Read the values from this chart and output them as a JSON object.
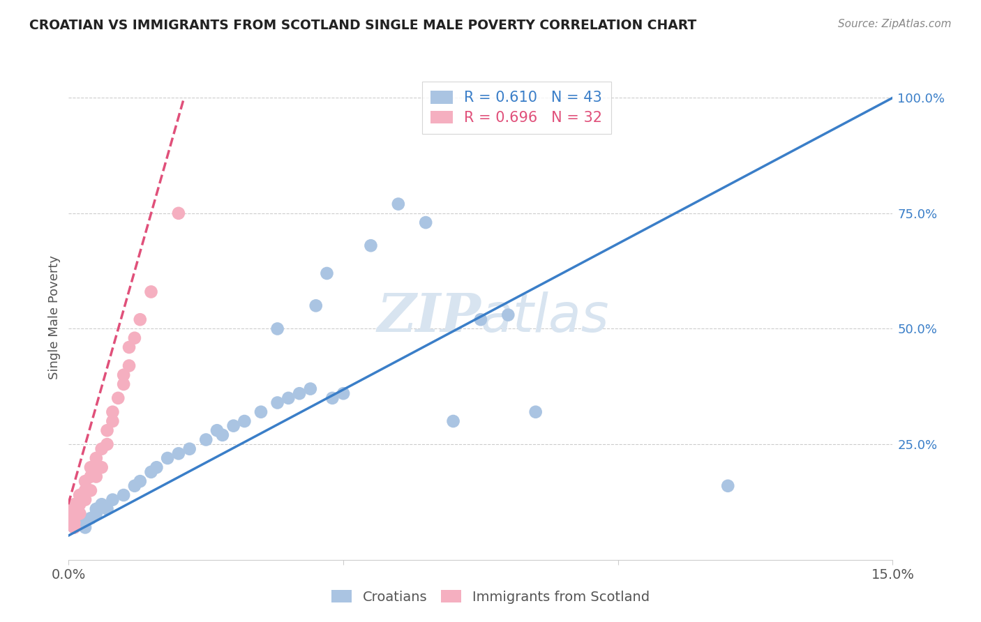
{
  "title": "CROATIAN VS IMMIGRANTS FROM SCOTLAND SINGLE MALE POVERTY CORRELATION CHART",
  "source": "Source: ZipAtlas.com",
  "ylabel": "Single Male Poverty",
  "legend_blue_r": "R = 0.610",
  "legend_blue_n": "N = 43",
  "legend_pink_r": "R = 0.696",
  "legend_pink_n": "N = 32",
  "blue_scatter": [
    [
      0.001,
      0.07
    ],
    [
      0.001,
      0.08
    ],
    [
      0.002,
      0.09
    ],
    [
      0.002,
      0.1
    ],
    [
      0.003,
      0.08
    ],
    [
      0.003,
      0.07
    ],
    [
      0.004,
      0.09
    ],
    [
      0.005,
      0.1
    ],
    [
      0.005,
      0.11
    ],
    [
      0.006,
      0.12
    ],
    [
      0.007,
      0.11
    ],
    [
      0.008,
      0.13
    ],
    [
      0.01,
      0.14
    ],
    [
      0.012,
      0.16
    ],
    [
      0.013,
      0.17
    ],
    [
      0.015,
      0.19
    ],
    [
      0.016,
      0.2
    ],
    [
      0.018,
      0.22
    ],
    [
      0.02,
      0.23
    ],
    [
      0.022,
      0.24
    ],
    [
      0.025,
      0.26
    ],
    [
      0.027,
      0.28
    ],
    [
      0.028,
      0.27
    ],
    [
      0.03,
      0.29
    ],
    [
      0.032,
      0.3
    ],
    [
      0.035,
      0.32
    ],
    [
      0.038,
      0.34
    ],
    [
      0.04,
      0.35
    ],
    [
      0.042,
      0.36
    ],
    [
      0.044,
      0.37
    ],
    [
      0.048,
      0.35
    ],
    [
      0.05,
      0.36
    ],
    [
      0.038,
      0.5
    ],
    [
      0.045,
      0.55
    ],
    [
      0.047,
      0.62
    ],
    [
      0.055,
      0.68
    ],
    [
      0.06,
      0.77
    ],
    [
      0.065,
      0.73
    ],
    [
      0.075,
      0.52
    ],
    [
      0.08,
      0.53
    ],
    [
      0.07,
      0.3
    ],
    [
      0.085,
      0.32
    ],
    [
      0.12,
      0.16
    ]
  ],
  "pink_scatter": [
    [
      0.001,
      0.07
    ],
    [
      0.001,
      0.08
    ],
    [
      0.001,
      0.09
    ],
    [
      0.001,
      0.1
    ],
    [
      0.001,
      0.11
    ],
    [
      0.001,
      0.12
    ],
    [
      0.002,
      0.1
    ],
    [
      0.002,
      0.12
    ],
    [
      0.002,
      0.14
    ],
    [
      0.003,
      0.13
    ],
    [
      0.003,
      0.15
    ],
    [
      0.003,
      0.17
    ],
    [
      0.004,
      0.15
    ],
    [
      0.004,
      0.18
    ],
    [
      0.004,
      0.2
    ],
    [
      0.005,
      0.18
    ],
    [
      0.005,
      0.22
    ],
    [
      0.006,
      0.2
    ],
    [
      0.006,
      0.24
    ],
    [
      0.007,
      0.25
    ],
    [
      0.007,
      0.28
    ],
    [
      0.008,
      0.3
    ],
    [
      0.008,
      0.32
    ],
    [
      0.009,
      0.35
    ],
    [
      0.01,
      0.38
    ],
    [
      0.01,
      0.4
    ],
    [
      0.011,
      0.42
    ],
    [
      0.011,
      0.46
    ],
    [
      0.012,
      0.48
    ],
    [
      0.013,
      0.52
    ],
    [
      0.015,
      0.58
    ],
    [
      0.02,
      0.75
    ]
  ],
  "blue_line_x": [
    -0.002,
    0.15
  ],
  "blue_line_y": [
    0.04,
    1.0
  ],
  "pink_line_x": [
    -0.002,
    0.021
  ],
  "pink_line_y": [
    0.04,
    1.0
  ],
  "blue_color": "#aac4e2",
  "blue_line_color": "#3a7ec8",
  "pink_color": "#f5afc0",
  "pink_line_color": "#e0507a",
  "watermark_zip": "ZIP",
  "watermark_atlas": "atlas",
  "watermark_color": "#d8e4f0",
  "background_color": "#ffffff",
  "xlim": [
    -0.003,
    0.153
  ],
  "ylim": [
    -0.05,
    1.08
  ],
  "plot_xlim": [
    0.0,
    0.15
  ],
  "plot_ylim": [
    0.0,
    1.05
  ]
}
